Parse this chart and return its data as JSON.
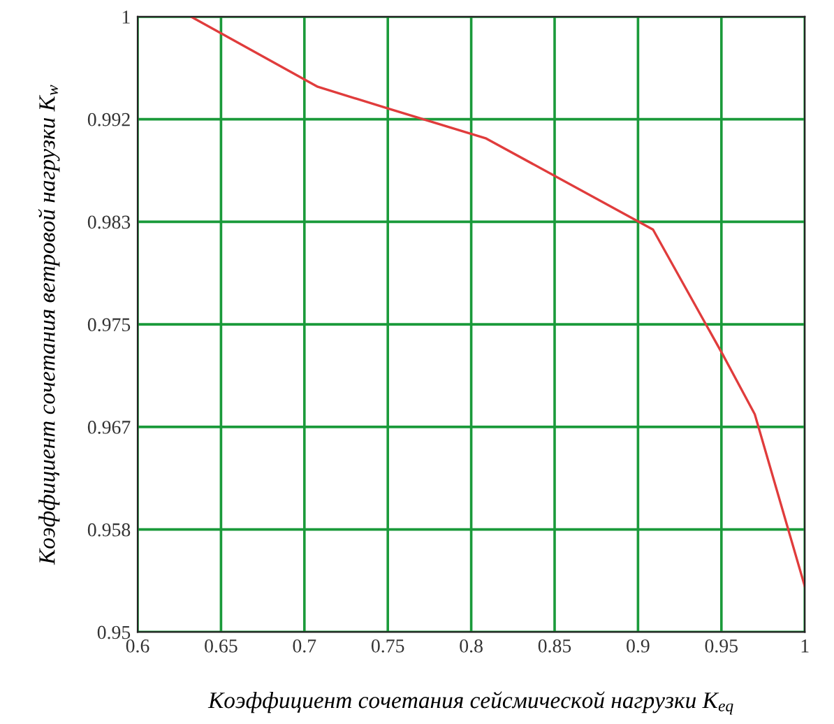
{
  "chart_data": {
    "type": "line",
    "xlabel": "Коэффициент сочетания сейсмической нагрузки K$_{eq}$",
    "ylabel": "Коэффициент сочетания ветровой нагрузки K$_{w}$",
    "x": [
      0.632,
      0.708,
      0.751,
      0.809,
      0.909,
      0.951,
      0.97,
      1.0
    ],
    "series": [
      {
        "color": "#e03c3c",
        "values": [
          1.0,
          0.9943,
          0.9925,
          0.9901,
          0.9827,
          0.9725,
          0.9677,
          0.9537
        ]
      }
    ],
    "xlim": [
      0.6,
      1
    ],
    "ylim": [
      0.95,
      1
    ],
    "xticks": [
      0.6,
      0.65,
      0.7,
      0.75,
      0.8,
      0.85,
      0.9,
      0.95,
      1
    ],
    "yticks": [
      0.95,
      {
        "value": 0.958333,
        "label": "0.958"
      },
      {
        "value": 0.966667,
        "label": "0.967"
      },
      0.975,
      {
        "value": 0.983333,
        "label": "0.983"
      },
      {
        "value": 0.991667,
        "label": "0.992"
      },
      1
    ],
    "grid": true,
    "line_style": "solid",
    "marker": "none",
    "legend": false
  }
}
